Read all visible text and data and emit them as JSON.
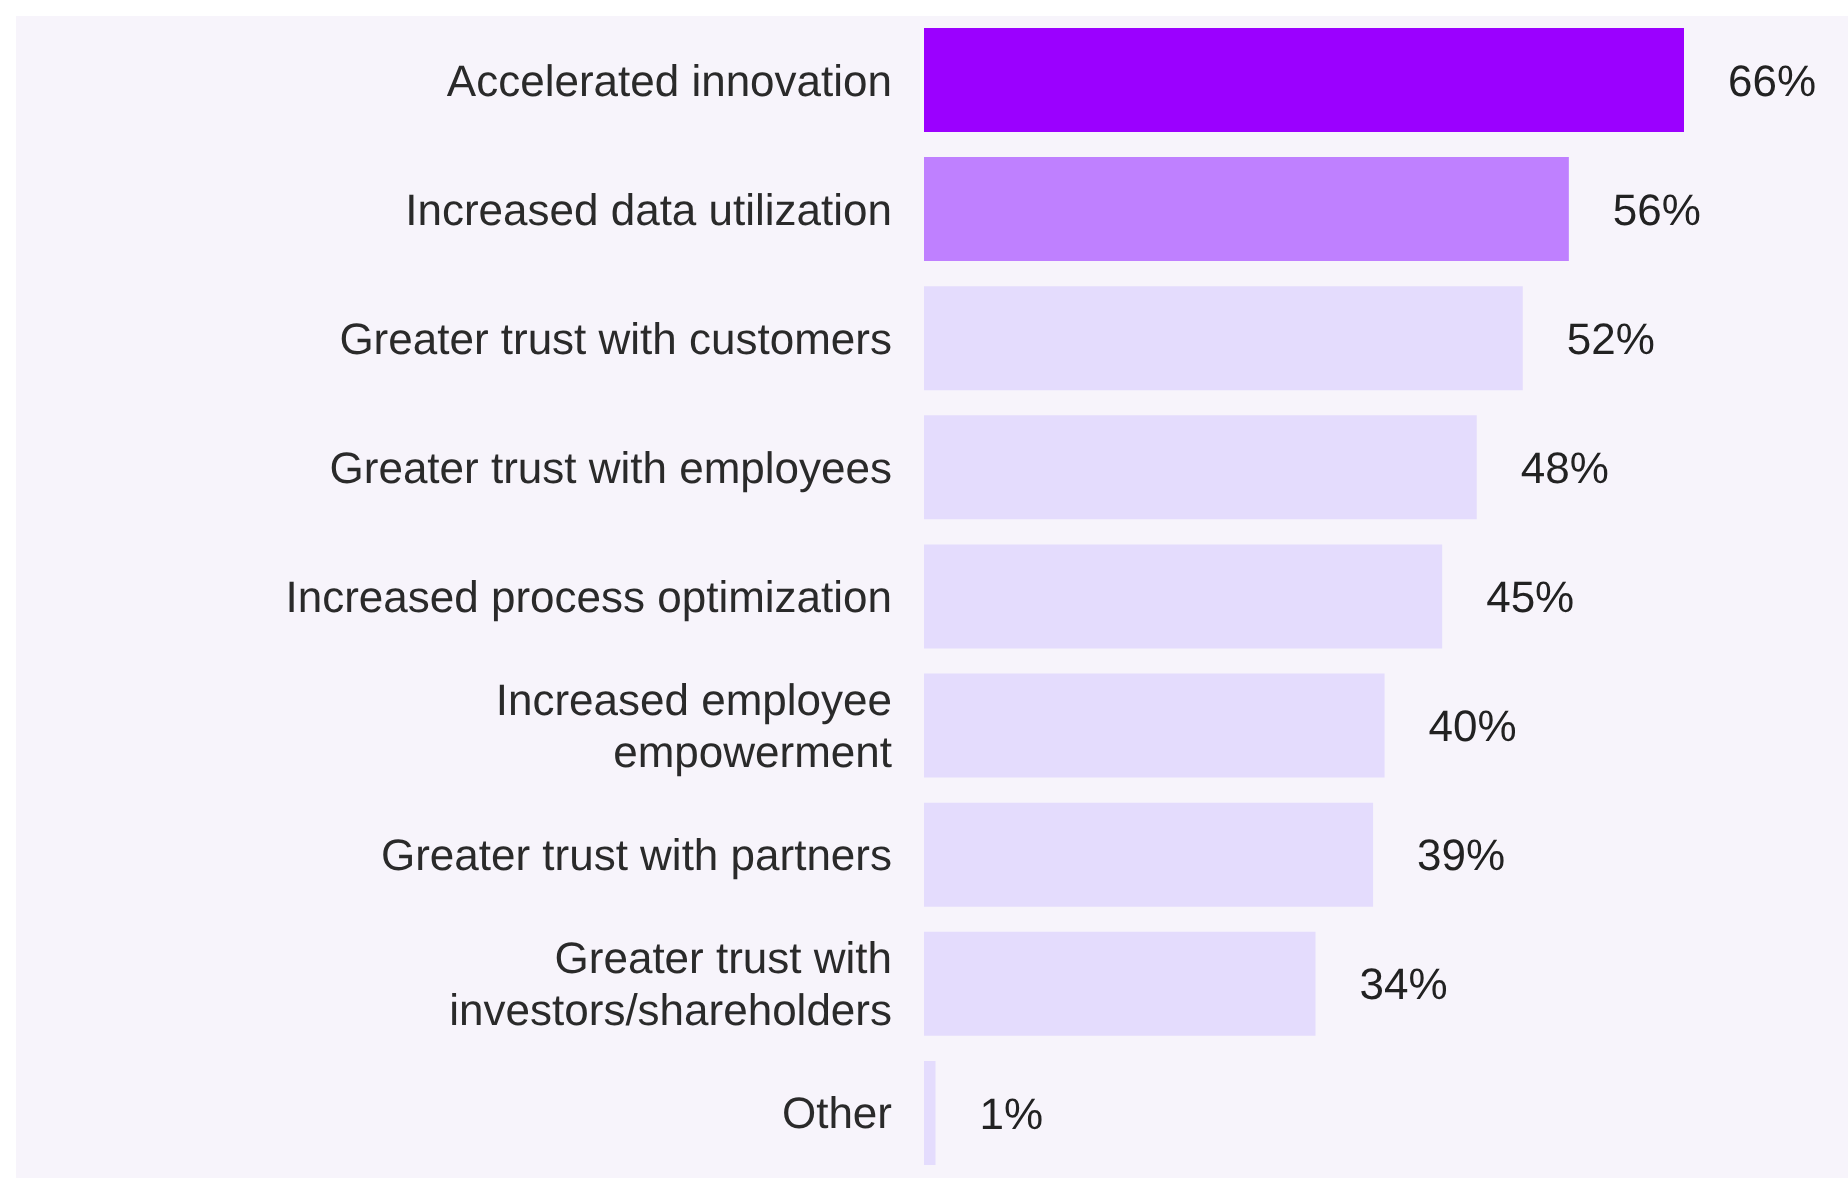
{
  "chart_data": {
    "type": "bar",
    "orientation": "horizontal",
    "categories": [
      "Accelerated innovation",
      "Increased data utilization",
      "Greater trust with customers",
      "Greater trust with employees",
      "Increased process optimization",
      "Increased employee\nempowerment",
      "Greater trust with partners",
      "Greater trust with\ninvestors/shareholders",
      "Other"
    ],
    "values": [
      66,
      56,
      52,
      48,
      45,
      40,
      39,
      34,
      1
    ],
    "colors": [
      "#9b00ff",
      "#bf80ff",
      "#e4dcfd",
      "#e4dcfd",
      "#e4dcfd",
      "#e4dcfd",
      "#e4dcfd",
      "#e4dcfd",
      "#e4dcfd"
    ],
    "value_labels": [
      "66%",
      "56%",
      "52%",
      "48%",
      "45%",
      "40%",
      "39%",
      "34%",
      "1%"
    ],
    "relative": false,
    "grid": false,
    "legend": false
  }
}
